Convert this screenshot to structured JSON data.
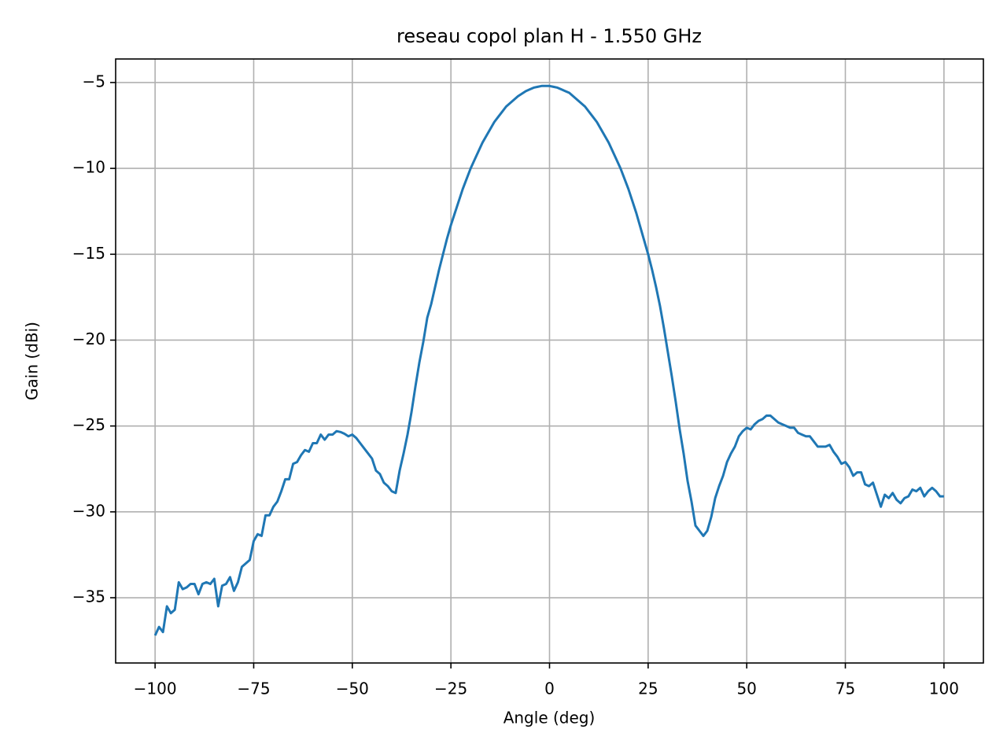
{
  "chart_data": {
    "type": "line",
    "title": "reseau copol plan H - 1.550 GHz",
    "x_label": "Angle (deg)",
    "y_label": "Gain (dBi)",
    "x": [
      -100,
      -99,
      -98,
      -97,
      -96,
      -95,
      -94,
      -93,
      -92,
      -91,
      -90,
      -89,
      -88,
      -87,
      -86,
      -85,
      -84,
      -83,
      -82,
      -81,
      -80,
      -79,
      -78,
      -77,
      -76,
      -75,
      -74,
      -73,
      -72,
      -71,
      -70,
      -69,
      -68,
      -67,
      -66,
      -65,
      -64,
      -63,
      -62,
      -61,
      -60,
      -59,
      -58,
      -57,
      -56,
      -55,
      -54,
      -53,
      -52,
      -51,
      -50,
      -49,
      -48,
      -47,
      -46,
      -45,
      -44,
      -43,
      -42,
      -41,
      -40,
      -39,
      -38,
      -37,
      -36,
      -35,
      -34,
      -33,
      -32,
      -31,
      -30,
      -29,
      -28,
      -27,
      -26,
      -25,
      -24,
      -23,
      -22,
      -21,
      -20,
      -19,
      -18,
      -17,
      -16,
      -15,
      -14,
      -13,
      -12,
      -11,
      -10,
      -9,
      -8,
      -7,
      -6,
      -5,
      -4,
      -3,
      -2,
      -1,
      0,
      1,
      2,
      3,
      4,
      5,
      6,
      7,
      8,
      9,
      10,
      11,
      12,
      13,
      14,
      15,
      16,
      17,
      18,
      19,
      20,
      21,
      22,
      23,
      24,
      25,
      26,
      27,
      28,
      29,
      30,
      31,
      32,
      33,
      34,
      35,
      36,
      37,
      38,
      39,
      40,
      41,
      42,
      43,
      44,
      45,
      46,
      47,
      48,
      49,
      50,
      51,
      52,
      53,
      54,
      55,
      56,
      57,
      58,
      59,
      60,
      61,
      62,
      63,
      64,
      65,
      66,
      67,
      68,
      69,
      70,
      71,
      72,
      73,
      74,
      75,
      76,
      77,
      78,
      79,
      80,
      81,
      82,
      83,
      84,
      85,
      86,
      87,
      88,
      89,
      90,
      91,
      92,
      93,
      94,
      95,
      96,
      97,
      98,
      99,
      100
    ],
    "series": [
      {
        "name": "copol",
        "color": "#1f77b4",
        "values": [
          -37.2,
          -36.7,
          -37.0,
          -35.5,
          -35.9,
          -35.7,
          -34.1,
          -34.5,
          -34.4,
          -34.2,
          -34.2,
          -34.8,
          -34.2,
          -34.1,
          -34.2,
          -33.9,
          -35.5,
          -34.3,
          -34.2,
          -33.8,
          -34.6,
          -34.1,
          -33.2,
          -33.0,
          -32.8,
          -31.7,
          -31.3,
          -31.4,
          -30.2,
          -30.2,
          -29.7,
          -29.4,
          -28.8,
          -28.1,
          -28.1,
          -27.2,
          -27.1,
          -26.7,
          -26.4,
          -26.5,
          -26.0,
          -26.0,
          -25.5,
          -25.8,
          -25.5,
          -25.5,
          -25.3,
          -25.35,
          -25.45,
          -25.6,
          -25.5,
          -25.7,
          -26.0,
          -26.3,
          -26.6,
          -26.9,
          -27.6,
          -27.8,
          -28.3,
          -28.5,
          -28.8,
          -28.9,
          -27.6,
          -26.6,
          -25.5,
          -24.2,
          -22.7,
          -21.3,
          -20.1,
          -18.7,
          -17.9,
          -16.9,
          -15.9,
          -15.0,
          -14.1,
          -13.3,
          -12.6,
          -11.9,
          -11.2,
          -10.6,
          -10.0,
          -9.5,
          -9.0,
          -8.5,
          -8.1,
          -7.7,
          -7.3,
          -7.0,
          -6.7,
          -6.4,
          -6.2,
          -6.0,
          -5.8,
          -5.65,
          -5.5,
          -5.4,
          -5.3,
          -5.25,
          -5.2,
          -5.2,
          -5.2,
          -5.25,
          -5.3,
          -5.4,
          -5.5,
          -5.6,
          -5.8,
          -6.0,
          -6.2,
          -6.4,
          -6.7,
          -7.0,
          -7.3,
          -7.7,
          -8.1,
          -8.5,
          -9.0,
          -9.5,
          -10.0,
          -10.6,
          -11.2,
          -11.9,
          -12.6,
          -13.4,
          -14.2,
          -15.0,
          -15.9,
          -16.9,
          -18.0,
          -19.3,
          -20.7,
          -22.1,
          -23.6,
          -25.2,
          -26.6,
          -28.2,
          -29.4,
          -30.8,
          -31.1,
          -31.4,
          -31.1,
          -30.3,
          -29.2,
          -28.5,
          -27.9,
          -27.1,
          -26.6,
          -26.2,
          -25.6,
          -25.3,
          -25.1,
          -25.2,
          -24.9,
          -24.7,
          -24.6,
          -24.4,
          -24.4,
          -24.6,
          -24.8,
          -24.9,
          -25.0,
          -25.1,
          -25.1,
          -25.4,
          -25.5,
          -25.6,
          -25.6,
          -25.9,
          -26.2,
          -26.2,
          -26.2,
          -26.1,
          -26.5,
          -26.8,
          -27.2,
          -27.1,
          -27.4,
          -27.9,
          -27.7,
          -27.7,
          -28.4,
          -28.5,
          -28.3,
          -29.0,
          -29.7,
          -29.0,
          -29.2,
          -28.9,
          -29.3,
          -29.5,
          -29.2,
          -29.1,
          -28.7,
          -28.8,
          -28.6,
          -29.1,
          -28.8,
          -28.6,
          -28.8,
          -29.1,
          -29.1
        ]
      }
    ],
    "xlim": [
      -110,
      110
    ],
    "ylim": [
      -38.8,
      -3.63
    ],
    "xticks": [
      {
        "value": -100,
        "label": "−100"
      },
      {
        "value": -75,
        "label": "−75"
      },
      {
        "value": -50,
        "label": "−50"
      },
      {
        "value": -25,
        "label": "−25"
      },
      0,
      25,
      50,
      75,
      100
    ],
    "yticks": [
      {
        "value": -35,
        "label": "−35"
      },
      {
        "value": -30,
        "label": "−30"
      },
      {
        "value": -25,
        "label": "−25"
      },
      {
        "value": -20,
        "label": "−20"
      },
      {
        "value": -15,
        "label": "−15"
      },
      {
        "value": -10,
        "label": "−10"
      },
      {
        "value": -5,
        "label": "−5"
      }
    ],
    "grid": true
  }
}
